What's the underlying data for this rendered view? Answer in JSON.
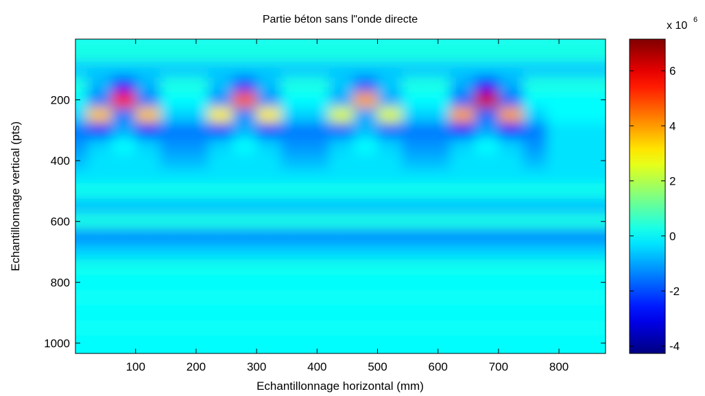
{
  "chart_data": {
    "type": "heatmap",
    "title": "Partie béton sans l\"onde directe",
    "x_label": "Echantillonnage horizontal (mm)",
    "y_label": "Echantillonnage vertical (pts)",
    "colorbar_label": "x 10",
    "colorbar_exponent": "6",
    "colormap": "jet",
    "xlim": [
      0.5,
      877
    ],
    "ylim": [
      0.5,
      1034
    ],
    "y_reversed": true,
    "clim": [
      -4.27,
      7.15
    ],
    "xticks": [
      100,
      200,
      300,
      400,
      500,
      600,
      700,
      800
    ],
    "yticks": [
      200,
      400,
      600,
      800,
      1000
    ],
    "cticks": [
      -4,
      -2,
      0,
      2,
      4,
      6
    ],
    "x": [
      0,
      40,
      80,
      120,
      160,
      200,
      240,
      280,
      320,
      360,
      400,
      440,
      480,
      520,
      560,
      600,
      640,
      680,
      720,
      760,
      800,
      840,
      880
    ],
    "y": [
      0,
      50,
      100,
      150,
      200,
      250,
      300,
      350,
      400,
      450,
      500,
      550,
      600,
      650,
      700,
      750,
      800,
      850,
      900,
      950,
      1000,
      1050
    ],
    "z": [
      [
        0.2,
        0.2,
        0.2,
        0.2,
        0.2,
        0.2,
        0.2,
        0.2,
        0.2,
        0.2,
        0.2,
        0.2,
        0.2,
        0.2,
        0.2,
        0.2,
        0.2,
        0.2,
        0.2,
        0.2,
        0.2,
        0.2,
        0.2
      ],
      [
        0.3,
        0.3,
        0.3,
        0.3,
        0.3,
        0.3,
        0.3,
        0.3,
        0.3,
        0.3,
        0.3,
        0.3,
        0.3,
        0.3,
        0.3,
        0.3,
        0.3,
        0.3,
        0.3,
        0.3,
        0.3,
        0.3,
        0.3
      ],
      [
        -0.6,
        -0.6,
        -0.6,
        -0.6,
        -0.6,
        -0.6,
        -0.6,
        -0.6,
        -0.6,
        -0.6,
        -0.6,
        -0.6,
        -0.6,
        -0.6,
        -0.6,
        -0.6,
        -0.6,
        -0.6,
        -0.6,
        -0.6,
        -0.6,
        -0.6,
        -0.6
      ],
      [
        0.3,
        -0.8,
        -2.5,
        -0.8,
        0.3,
        0.3,
        -0.7,
        -2.1,
        -0.7,
        0.3,
        0.3,
        -0.6,
        -1.8,
        -0.6,
        0.3,
        0.3,
        -0.9,
        -2.8,
        -0.9,
        0.3,
        0.3,
        0.3,
        0.3
      ],
      [
        0,
        -1.5,
        5.5,
        -1.5,
        0,
        0,
        -1.3,
        4.7,
        -1.3,
        0,
        0,
        -1,
        3.9,
        -1,
        0,
        0,
        -1.7,
        6.2,
        -1.7,
        0,
        0,
        0,
        0
      ],
      [
        -0.5,
        3.5,
        -1.5,
        3.5,
        -0.5,
        -0.5,
        3,
        -1.3,
        3,
        -0.5,
        -0.5,
        2.5,
        -1,
        2.5,
        -0.5,
        -0.5,
        3.9,
        -1.7,
        3.9,
        -0.5,
        0,
        0,
        0
      ],
      [
        -1.5,
        -2.5,
        -1,
        -2.5,
        -1.5,
        -1.5,
        -2.2,
        -0.9,
        -2.2,
        -1.5,
        -1.5,
        -1.8,
        -0.8,
        -1.8,
        -1.5,
        -1.5,
        -2.8,
        -1.1,
        -2.8,
        -1.5,
        -0.3,
        -0.3,
        -0.3
      ],
      [
        -1.2,
        -0.5,
        0,
        -0.5,
        -1.2,
        -1.2,
        -0.5,
        0,
        -0.5,
        -1.2,
        -1.2,
        -0.5,
        0,
        -0.5,
        -1.2,
        -1.2,
        -0.5,
        0,
        -0.5,
        -1.2,
        -0.3,
        -0.3,
        -0.3
      ],
      [
        -0.8,
        -0.3,
        -0.3,
        -0.3,
        -0.8,
        -0.8,
        -0.3,
        -0.3,
        -0.3,
        -0.8,
        -0.8,
        -0.3,
        -0.3,
        -0.3,
        -0.8,
        -0.8,
        -0.3,
        -0.3,
        -0.3,
        -0.8,
        -0.3,
        -0.3,
        -0.3
      ],
      [
        -0.3,
        -0.3,
        -0.3,
        -0.3,
        -0.3,
        -0.3,
        -0.3,
        -0.3,
        -0.3,
        -0.3,
        -0.3,
        -0.3,
        -0.3,
        -0.3,
        -0.3,
        -0.3,
        -0.3,
        -0.3,
        -0.3,
        -0.3,
        -0.3,
        -0.3,
        -0.3
      ],
      [
        0.2,
        0.2,
        0.2,
        0.2,
        0.2,
        0.2,
        0.2,
        0.2,
        0.2,
        0.2,
        0.2,
        0.2,
        0.2,
        0.2,
        0.2,
        0.2,
        0.2,
        0.2,
        0.2,
        0.2,
        0.2,
        0.2,
        0.2
      ],
      [
        -0.7,
        -0.7,
        -0.7,
        -0.7,
        -0.7,
        -0.7,
        -0.7,
        -0.7,
        -0.7,
        -0.7,
        -0.7,
        -0.7,
        -0.7,
        -0.7,
        -0.7,
        -0.7,
        -0.7,
        -0.7,
        -0.7,
        -0.7,
        -0.7,
        -0.7,
        -0.7
      ],
      [
        0.3,
        0.3,
        0.3,
        0.3,
        0.3,
        0.3,
        0.3,
        0.3,
        0.3,
        0.3,
        0.3,
        0.3,
        0.3,
        0.3,
        0.3,
        0.3,
        0.3,
        0.3,
        0.3,
        0.3,
        0.3,
        0.3,
        0.3
      ],
      [
        -1.3,
        -1.3,
        -1.3,
        -1.3,
        -1.3,
        -1.3,
        -1.3,
        -1.3,
        -1.3,
        -1.3,
        -1.3,
        -1.3,
        -1.3,
        -1.3,
        -1.3,
        -1.3,
        -1.3,
        -1.3,
        -1.3,
        -1.3,
        -1.3,
        -1.3,
        -1.3
      ],
      [
        -0.5,
        -0.5,
        -0.5,
        -0.5,
        -0.5,
        -0.5,
        -0.5,
        -0.5,
        -0.5,
        -0.5,
        -0.5,
        -0.5,
        -0.5,
        -0.5,
        -0.5,
        -0.5,
        -0.5,
        -0.5,
        -0.5,
        -0.5,
        -0.5,
        -0.5,
        -0.5
      ],
      [
        0.2,
        0.2,
        0.2,
        0.2,
        0.2,
        0.2,
        0.2,
        0.2,
        0.2,
        0.2,
        0.2,
        0.2,
        0.2,
        0.2,
        0.2,
        0.2,
        0.2,
        0.2,
        0.2,
        0.2,
        0.2,
        0.2,
        0.2
      ],
      [
        0,
        0,
        0,
        0,
        0,
        0,
        0,
        0,
        0,
        0,
        0,
        0,
        0,
        0,
        0,
        0,
        0,
        0,
        0,
        0,
        0,
        0,
        0
      ],
      [
        0.1,
        0.1,
        0.1,
        0.1,
        0.1,
        0.1,
        0.1,
        0.1,
        0.1,
        0.1,
        0.1,
        0.1,
        0.1,
        0.1,
        0.1,
        0.1,
        0.1,
        0.1,
        0.1,
        0.1,
        0.1,
        0.1,
        0.1
      ],
      [
        0,
        0,
        0,
        0,
        0,
        0,
        0,
        0,
        0,
        0,
        0,
        0,
        0,
        0,
        0,
        0,
        0,
        0,
        0,
        0,
        0,
        0,
        0
      ],
      [
        0.1,
        0.1,
        0.1,
        0.1,
        0.1,
        0.1,
        0.1,
        0.1,
        0.1,
        0.1,
        0.1,
        0.1,
        0.1,
        0.1,
        0.1,
        0.1,
        0.1,
        0.1,
        0.1,
        0.1,
        0.1,
        0.1,
        0.1
      ],
      [
        0,
        0,
        0,
        0,
        0,
        0,
        0,
        0,
        0,
        0,
        0,
        0,
        0,
        0,
        0,
        0,
        0,
        0,
        0,
        0,
        0,
        0,
        0
      ],
      [
        0,
        0,
        0,
        0,
        0,
        0,
        0,
        0,
        0,
        0,
        0,
        0,
        0,
        0,
        0,
        0,
        0,
        0,
        0,
        0,
        0,
        0,
        0
      ]
    ]
  }
}
